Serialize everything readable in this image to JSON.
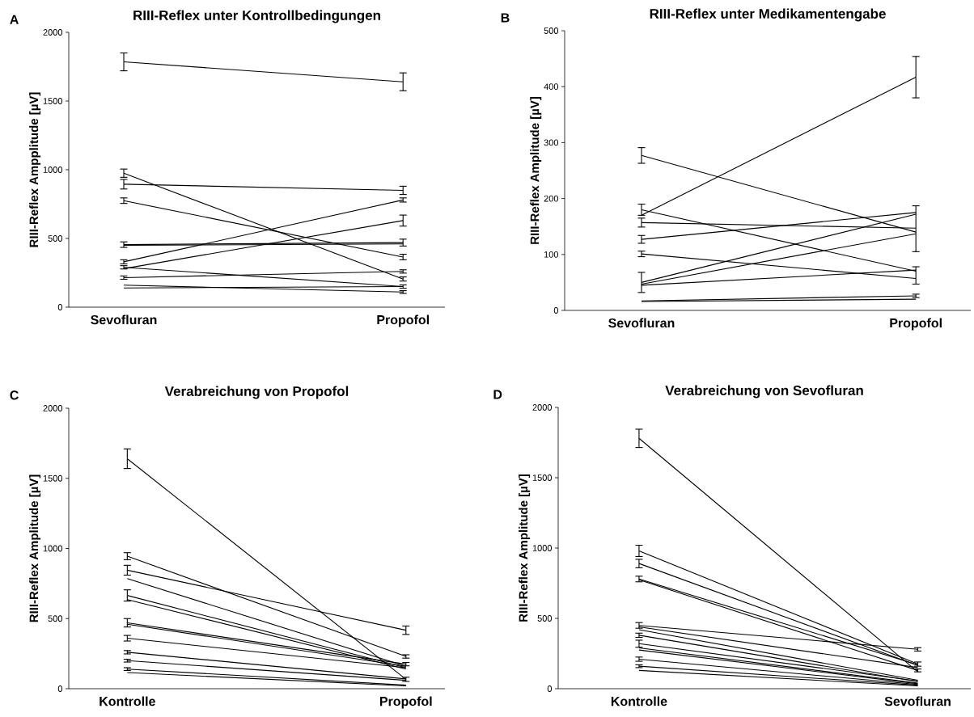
{
  "chart_data": [
    {
      "type": "line",
      "title": "RIII-Reflex unter Kontrollbedingungen",
      "ylabel": "RIII-Reflex Ampplitude [µV]",
      "annotations": [
        "A"
      ],
      "categories": [
        "Sevofluran",
        "Propofol"
      ],
      "ylim": [
        0,
        2000
      ],
      "yticks": [
        0,
        500,
        1000,
        1500,
        2000
      ],
      "series": [
        {
          "color": "#000000",
          "values": [
            1785,
            1640
          ],
          "errors": [
            65,
            65
          ]
        },
        {
          "color": "#000000",
          "values": [
            975,
            205
          ],
          "errors": [
            30,
            15
          ]
        },
        {
          "color": "#000000",
          "values": [
            895,
            850
          ],
          "errors": [
            35,
            30
          ]
        },
        {
          "color": "#000000",
          "values": [
            775,
            365
          ],
          "errors": [
            20,
            20
          ]
        },
        {
          "color": "#000000",
          "values": [
            455,
            470
          ],
          "errors": [
            20,
            25
          ]
        },
        {
          "color": "#000000",
          "values": [
            450,
            460
          ]
        },
        {
          "color": "#000000",
          "values": [
            330,
            780
          ],
          "errors": [
            15,
            15
          ]
        },
        {
          "color": "#000000",
          "values": [
            280,
            630
          ],
          "errors": [
            null,
            40
          ]
        },
        {
          "color": "#000000",
          "values": [
            290,
            150
          ],
          "errors": [
            12,
            12
          ]
        },
        {
          "color": "#000000",
          "values": [
            215,
            260
          ],
          "errors": [
            12,
            12
          ]
        },
        {
          "color": "#000000",
          "values": [
            160,
            110
          ],
          "errors": [
            null,
            10
          ]
        },
        {
          "color": "#000000",
          "values": [
            140,
            150
          ]
        }
      ]
    },
    {
      "type": "line",
      "title": "RIII-Reflex unter Medikamentengabe",
      "ylabel": "RIII-Reflex Amplitude [µV]",
      "annotations": [
        "B"
      ],
      "categories": [
        "Sevofluran",
        "Propofol"
      ],
      "ylim": [
        0,
        500
      ],
      "yticks": [
        0,
        100,
        200,
        300,
        400,
        500
      ],
      "series": [
        {
          "color": "#000000",
          "values": [
            277,
            140
          ],
          "errors": [
            14,
            null
          ]
        },
        {
          "color": "#000000",
          "values": [
            170,
            417
          ],
          "errors": [
            null,
            37
          ]
        },
        {
          "color": "#000000",
          "values": [
            180,
            70
          ],
          "errors": [
            10,
            null
          ]
        },
        {
          "color": "#000000",
          "values": [
            157,
            147
          ],
          "errors": [
            8,
            null
          ]
        },
        {
          "color": "#000000",
          "values": [
            127,
            175
          ],
          "errors": [
            7,
            null
          ]
        },
        {
          "color": "#000000",
          "values": [
            101,
            57
          ],
          "errors": [
            5,
            [
              47,
              78
            ]
          ]
        },
        {
          "color": "#000000",
          "values": [
            50,
            172
          ],
          "errors": [
            18,
            null
          ]
        },
        {
          "color": "#000000",
          "values": [
            47,
            137
          ],
          "errors": [
            null,
            [
              105,
              187
            ]
          ]
        },
        {
          "color": "#000000",
          "values": [
            45,
            72
          ]
        },
        {
          "color": "#000000",
          "values": [
            17,
            26
          ],
          "errors": [
            null,
            3
          ]
        },
        {
          "color": "#000000",
          "values": [
            16,
            20
          ]
        }
      ]
    },
    {
      "type": "line",
      "title": "Verabreichung von Propofol",
      "ylabel": "RIII-Reflex Amplitude [µV]",
      "annotations": [
        "C"
      ],
      "categories": [
        "Kontrolle",
        "Propofol"
      ],
      "ylim": [
        0,
        2000
      ],
      "yticks": [
        0,
        500,
        1000,
        1500,
        2000
      ],
      "series": [
        {
          "color": "#000000",
          "values": [
            1640,
            67
          ],
          "errors": [
            70,
            15
          ]
        },
        {
          "color": "#000000",
          "values": [
            945,
            230
          ],
          "errors": [
            25,
            12
          ]
        },
        {
          "color": "#000000",
          "values": [
            845,
            417
          ],
          "errors": [
            35,
            30
          ]
        },
        {
          "color": "#000000",
          "values": [
            785,
            160
          ]
        },
        {
          "color": "#000000",
          "values": [
            665,
            150
          ],
          "errors": [
            40,
            null
          ]
        },
        {
          "color": "#000000",
          "values": [
            635,
            140
          ]
        },
        {
          "color": "#000000",
          "values": [
            470,
            175
          ],
          "errors": [
            30,
            12
          ]
        },
        {
          "color": "#000000",
          "values": [
            460,
            160
          ]
        },
        {
          "color": "#000000",
          "values": [
            360,
            150
          ],
          "errors": [
            20,
            null
          ]
        },
        {
          "color": "#000000",
          "values": [
            260,
            70
          ],
          "errors": [
            12,
            null
          ]
        },
        {
          "color": "#000000",
          "values": [
            200,
            60
          ],
          "errors": [
            10,
            null
          ]
        },
        {
          "color": "#000000",
          "values": [
            140,
            25
          ],
          "errors": [
            10,
            null
          ]
        },
        {
          "color": "#000000",
          "values": [
            115,
            20
          ]
        }
      ]
    },
    {
      "type": "line",
      "title": "Verabreichung von Sevofluran",
      "ylabel": "RIII-Reflex Amplitude [µV]",
      "annotations": [
        "D"
      ],
      "categories": [
        "Kontrolle",
        "Sevofluran"
      ],
      "ylim": [
        0,
        2000
      ],
      "yticks": [
        0,
        500,
        1000,
        1500,
        2000
      ],
      "series": [
        {
          "color": "#000000",
          "values": [
            1780,
            120
          ],
          "errors": [
            65,
            null
          ]
        },
        {
          "color": "#000000",
          "values": [
            980,
            175
          ],
          "errors": [
            40,
            15
          ]
        },
        {
          "color": "#000000",
          "values": [
            890,
            165
          ],
          "errors": [
            30,
            null
          ]
        },
        {
          "color": "#000000",
          "values": [
            780,
            170
          ],
          "errors": [
            20,
            null
          ]
        },
        {
          "color": "#000000",
          "values": [
            775,
            130
          ],
          "errors": [
            null,
            10
          ]
        },
        {
          "color": "#000000",
          "values": [
            450,
            280
          ],
          "errors": [
            20,
            12
          ]
        },
        {
          "color": "#000000",
          "values": [
            440,
            150
          ]
        },
        {
          "color": "#000000",
          "values": [
            420,
            60
          ]
        },
        {
          "color": "#000000",
          "values": [
            380,
            50
          ],
          "errors": [
            15,
            null
          ]
        },
        {
          "color": "#000000",
          "values": [
            320,
            55
          ],
          "errors": [
            25,
            null
          ]
        },
        {
          "color": "#000000",
          "values": [
            290,
            40
          ]
        },
        {
          "color": "#000000",
          "values": [
            275,
            35
          ]
        },
        {
          "color": "#000000",
          "values": [
            210,
            30
          ],
          "errors": [
            15,
            null
          ]
        },
        {
          "color": "#000000",
          "values": [
            160,
            25
          ],
          "errors": [
            10,
            null
          ]
        },
        {
          "color": "#000000",
          "values": [
            130,
            20
          ]
        }
      ]
    }
  ]
}
